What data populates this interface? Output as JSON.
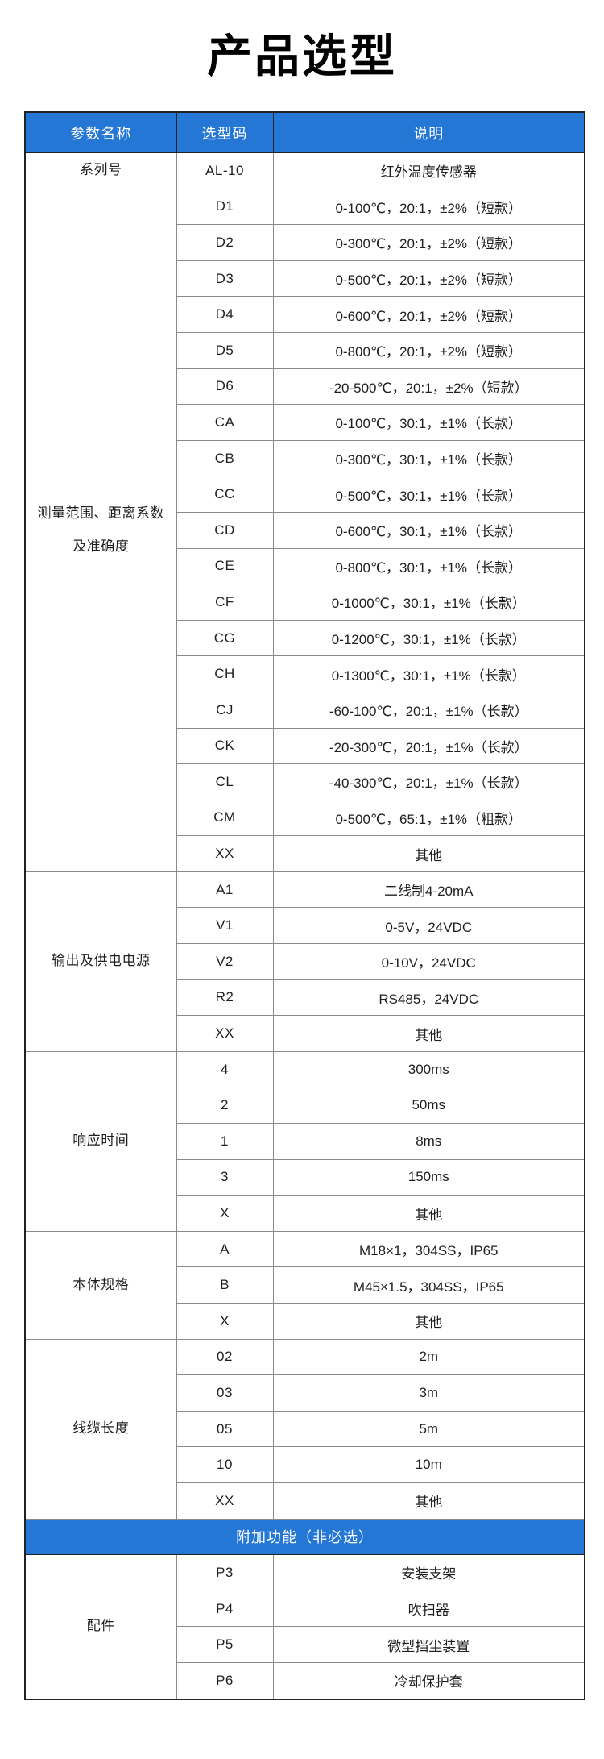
{
  "page": {
    "title": "产品选型"
  },
  "colors": {
    "header_bg": "#2577d5",
    "header_text": "#ffffff",
    "body_text": "#1f1f1f",
    "outer_border": "#222222",
    "inner_border": "#8a8a8a"
  },
  "table": {
    "headers": [
      "参数名称",
      "选型码",
      "说明"
    ],
    "body": [
      {
        "type": "group",
        "label_lines": [
          "系列号"
        ],
        "rows": [
          {
            "code": "AL-10",
            "desc": "红外温度传感器"
          }
        ]
      },
      {
        "type": "group",
        "label_lines": [
          "测量范围、距离系数",
          "及准确度"
        ],
        "rows": [
          {
            "code": "D1",
            "desc": "0-100℃，20:1，±2%（短款）"
          },
          {
            "code": "D2",
            "desc": "0-300℃，20:1，±2%（短款）"
          },
          {
            "code": "D3",
            "desc": "0-500℃，20:1，±2%（短款）"
          },
          {
            "code": "D4",
            "desc": "0-600℃，20:1，±2%（短款）"
          },
          {
            "code": "D5",
            "desc": "0-800℃，20:1，±2%（短款）"
          },
          {
            "code": "D6",
            "desc": "-20-500℃，20:1，±2%（短款）"
          },
          {
            "code": "CA",
            "desc": "0-100℃，30:1，±1%（长款）"
          },
          {
            "code": "CB",
            "desc": "0-300℃，30:1，±1%（长款）"
          },
          {
            "code": "CC",
            "desc": "0-500℃，30:1，±1%（长款）"
          },
          {
            "code": "CD",
            "desc": "0-600℃，30:1，±1%（长款）"
          },
          {
            "code": "CE",
            "desc": "0-800℃，30:1，±1%（长款）"
          },
          {
            "code": "CF",
            "desc": "0-1000℃，30:1，±1%（长款）"
          },
          {
            "code": "CG",
            "desc": "0-1200℃，30:1，±1%（长款）"
          },
          {
            "code": "CH",
            "desc": "0-1300℃，30:1，±1%（长款）"
          },
          {
            "code": "CJ",
            "desc": "-60-100℃，20:1，±1%（长款）"
          },
          {
            "code": "CK",
            "desc": "-20-300℃，20:1，±1%（长款）"
          },
          {
            "code": "CL",
            "desc": "-40-300℃，20:1，±1%（长款）"
          },
          {
            "code": "CM",
            "desc": "0-500℃，65:1，±1%（粗款）"
          },
          {
            "code": "XX",
            "desc": "其他"
          }
        ]
      },
      {
        "type": "group",
        "label_lines": [
          "输出及供电电源"
        ],
        "rows": [
          {
            "code": "A1",
            "desc": "二线制4-20mA"
          },
          {
            "code": "V1",
            "desc": "0-5V，24VDC"
          },
          {
            "code": "V2",
            "desc": "0-10V，24VDC"
          },
          {
            "code": "R2",
            "desc": "RS485，24VDC"
          },
          {
            "code": "XX",
            "desc": "其他"
          }
        ]
      },
      {
        "type": "group",
        "label_lines": [
          "响应时间"
        ],
        "rows": [
          {
            "code": "4",
            "desc": "300ms"
          },
          {
            "code": "2",
            "desc": "50ms"
          },
          {
            "code": "1",
            "desc": "8ms"
          },
          {
            "code": "3",
            "desc": "150ms"
          },
          {
            "code": "X",
            "desc": "其他"
          }
        ]
      },
      {
        "type": "group",
        "label_lines": [
          "本体规格"
        ],
        "rows": [
          {
            "code": "A",
            "desc": "M18×1，304SS，IP65"
          },
          {
            "code": "B",
            "desc": "M45×1.5，304SS，IP65"
          },
          {
            "code": "X",
            "desc": "其他"
          }
        ]
      },
      {
        "type": "group",
        "label_lines": [
          "线缆长度"
        ],
        "rows": [
          {
            "code": "02",
            "desc": "2m"
          },
          {
            "code": "03",
            "desc": "3m"
          },
          {
            "code": "05",
            "desc": "5m"
          },
          {
            "code": "10",
            "desc": "10m"
          },
          {
            "code": "XX",
            "desc": "其他"
          }
        ]
      },
      {
        "type": "banner",
        "label": "附加功能（非必选）"
      },
      {
        "type": "group",
        "label_lines": [
          "配件"
        ],
        "rows": [
          {
            "code": "P3",
            "desc": "安装支架"
          },
          {
            "code": "P4",
            "desc": "吹扫器"
          },
          {
            "code": "P5",
            "desc": "微型挡尘装置"
          },
          {
            "code": "P6",
            "desc": "冷却保护套"
          }
        ]
      }
    ]
  }
}
